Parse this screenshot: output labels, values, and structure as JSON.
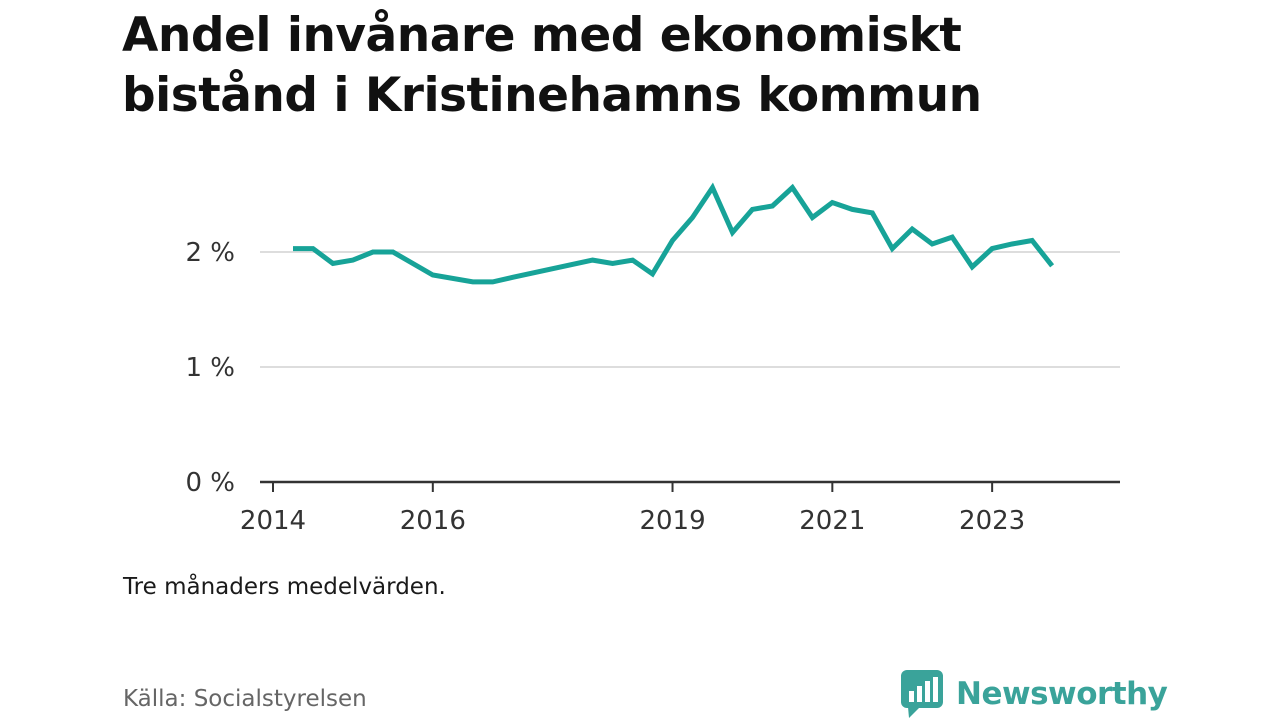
{
  "title": "Andel invånare med ekonomiskt bistånd i Kristinehamns kommun",
  "note": "Tre månaders medelvärden.",
  "source": "Källa: Socialstyrelsen",
  "brand": "Newsworthy",
  "colors": {
    "line": "#17a398",
    "grid": "#dddddd",
    "axis": "#333333",
    "brand": "#3aa39a"
  },
  "chart_data": {
    "type": "line",
    "title": "Andel invånare med ekonomiskt bistånd i Kristinehamns kommun",
    "xlabel": "",
    "ylabel": "",
    "ylim": [
      0,
      2.6
    ],
    "xlim": [
      "2014-01",
      "2024-07"
    ],
    "grid": true,
    "y_ticks": [
      {
        "value": 0,
        "label": "0 %"
      },
      {
        "value": 1,
        "label": "1 %"
      },
      {
        "value": 2,
        "label": "2 %"
      }
    ],
    "x_ticks": [
      {
        "value": "2014-01",
        "label": "2014"
      },
      {
        "value": "2016-01",
        "label": "2016"
      },
      {
        "value": "2019-01",
        "label": "2019"
      },
      {
        "value": "2021-01",
        "label": "2021"
      },
      {
        "value": "2023-01",
        "label": "2023"
      }
    ],
    "series": [
      {
        "values": [
          {
            "x": "2014-04",
            "y": 2.03
          },
          {
            "x": "2014-07",
            "y": 2.03
          },
          {
            "x": "2014-10",
            "y": 1.9
          },
          {
            "x": "2015-01",
            "y": 1.93
          },
          {
            "x": "2015-04",
            "y": 2.0
          },
          {
            "x": "2015-07",
            "y": 2.0
          },
          {
            "x": "2016-01",
            "y": 1.8
          },
          {
            "x": "2016-07",
            "y": 1.74
          },
          {
            "x": "2016-10",
            "y": 1.74
          },
          {
            "x": "2017-01",
            "y": 1.78
          },
          {
            "x": "2018-01",
            "y": 1.93
          },
          {
            "x": "2018-04",
            "y": 1.9
          },
          {
            "x": "2018-07",
            "y": 1.93
          },
          {
            "x": "2018-10",
            "y": 1.81
          },
          {
            "x": "2019-01",
            "y": 2.1
          },
          {
            "x": "2019-04",
            "y": 2.3
          },
          {
            "x": "2019-07",
            "y": 2.56
          },
          {
            "x": "2019-10",
            "y": 2.17
          },
          {
            "x": "2020-01",
            "y": 2.37
          },
          {
            "x": "2020-04",
            "y": 2.4
          },
          {
            "x": "2020-07",
            "y": 2.56
          },
          {
            "x": "2020-10",
            "y": 2.3
          },
          {
            "x": "2021-01",
            "y": 2.43
          },
          {
            "x": "2021-04",
            "y": 2.37
          },
          {
            "x": "2021-07",
            "y": 2.34
          },
          {
            "x": "2021-10",
            "y": 2.03
          },
          {
            "x": "2022-01",
            "y": 2.2
          },
          {
            "x": "2022-04",
            "y": 2.07
          },
          {
            "x": "2022-07",
            "y": 2.13
          },
          {
            "x": "2022-10",
            "y": 1.87
          },
          {
            "x": "2023-01",
            "y": 2.03
          },
          {
            "x": "2023-04",
            "y": 2.07
          },
          {
            "x": "2023-07",
            "y": 2.1
          },
          {
            "x": "2023-10",
            "y": 1.88
          }
        ]
      }
    ]
  }
}
